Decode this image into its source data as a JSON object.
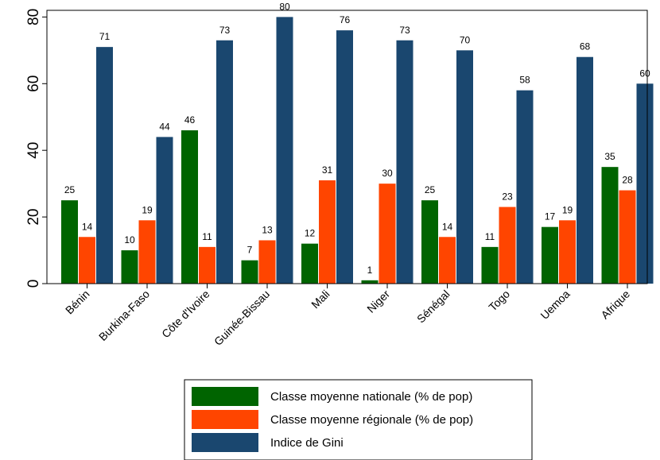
{
  "chart_data": {
    "type": "bar",
    "categories": [
      "Bénin",
      "Burkina-Faso",
      "Côte d'Ivoire",
      "Guinée-Bissau",
      "Mali",
      "Niger",
      "Sénégal",
      "Togo",
      "Uemoa",
      "Afrique"
    ],
    "series": [
      {
        "name": "Classe moyenne nationale (% de pop)",
        "color": "#006400",
        "values": [
          25,
          10,
          46,
          7,
          12,
          1,
          25,
          11,
          17,
          35
        ]
      },
      {
        "name": "Classe moyenne régionale (% de pop)",
        "color": "#ff4500",
        "values": [
          14,
          19,
          11,
          13,
          31,
          30,
          14,
          23,
          19,
          28
        ]
      },
      {
        "name": "Indice de Gini",
        "color": "#1a476f",
        "values": [
          71,
          44,
          73,
          80,
          76,
          73,
          70,
          58,
          68,
          60
        ]
      }
    ],
    "display_values": [
      [
        "25",
        "10",
        "46",
        "7",
        "12",
        "1",
        "25",
        "11",
        "17",
        "35"
      ],
      [
        "14",
        "19",
        "11",
        "13",
        "31",
        "30",
        "14",
        "23",
        "19",
        "28"
      ],
      [
        "71",
        "44",
        "73",
        "80",
        "76",
        "73",
        "70",
        "58",
        "68",
        "60"
      ]
    ],
    "y_ticks": [
      0,
      20,
      40,
      60,
      80
    ],
    "ylim": [
      0,
      80
    ],
    "legend_position": "bottom",
    "grid": false
  }
}
